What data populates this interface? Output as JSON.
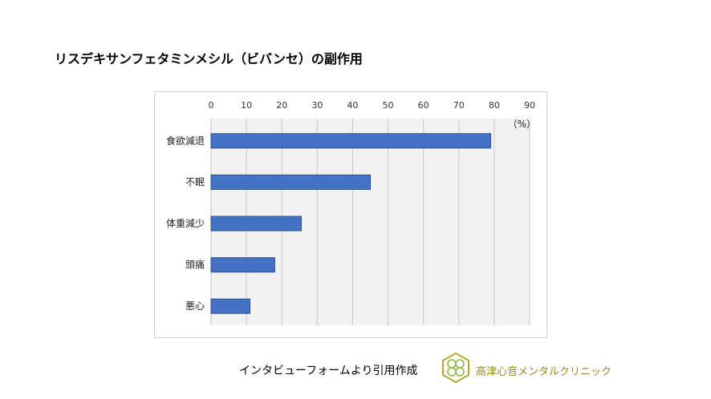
{
  "title": "リスデキサンフェタミンメシル（ビバンセ）の副作用",
  "footer": {
    "source_text": "インタビューフォームより引用作成",
    "clinic_name": "高津心音メンタルクリニック",
    "logo_icon": "clover-hexagon-logo-icon",
    "clinic_color": "#9a8a22"
  },
  "chart_data": {
    "type": "bar",
    "orientation": "horizontal",
    "categories": [
      "食欲減退",
      "不眠",
      "体重減少",
      "頭痛",
      "悪心"
    ],
    "values": [
      79,
      45,
      25.5,
      18,
      11
    ],
    "xlim": [
      0,
      90
    ],
    "ticks": [
      0,
      10,
      20,
      30,
      40,
      50,
      60,
      70,
      80,
      90
    ],
    "tick_labels": [
      "0",
      "10",
      "20",
      "30",
      "40",
      "50",
      "60",
      "70",
      "80",
      "90"
    ],
    "axis_position": "top",
    "unit_label": "（%）",
    "grid": true,
    "bar_color": "#4472c4",
    "bar_edge_color": "#2f4f8f",
    "plot_background": "#f2f2f2",
    "legend": "none"
  }
}
